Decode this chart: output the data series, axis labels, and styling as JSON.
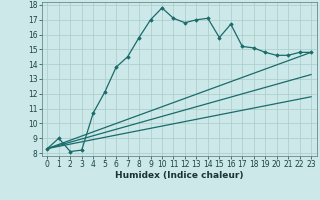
{
  "title": "",
  "xlabel": "Humidex (Indice chaleur)",
  "ylabel": "",
  "bg_color": "#cce8e8",
  "line_color": "#1a6b6b",
  "grid_color": "#aacccc",
  "xlim": [
    -0.5,
    23.5
  ],
  "ylim": [
    7.8,
    18.2
  ],
  "xticks": [
    0,
    1,
    2,
    3,
    4,
    5,
    6,
    7,
    8,
    9,
    10,
    11,
    12,
    13,
    14,
    15,
    16,
    17,
    18,
    19,
    20,
    21,
    22,
    23
  ],
  "yticks": [
    8,
    9,
    10,
    11,
    12,
    13,
    14,
    15,
    16,
    17,
    18
  ],
  "series1_x": [
    0,
    1,
    2,
    3,
    4,
    5,
    6,
    7,
    8,
    9,
    10,
    11,
    12,
    13,
    14,
    15,
    16,
    17,
    18,
    19,
    20,
    21,
    22,
    23
  ],
  "series1_y": [
    8.3,
    9.0,
    8.1,
    8.2,
    10.7,
    12.1,
    13.8,
    14.5,
    15.8,
    17.0,
    17.8,
    17.1,
    16.8,
    17.0,
    17.1,
    15.8,
    16.7,
    15.2,
    15.1,
    14.8,
    14.6,
    14.6,
    14.8,
    14.8
  ],
  "series2_x": [
    0,
    23
  ],
  "series2_y": [
    8.3,
    14.8
  ],
  "series3_x": [
    0,
    23
  ],
  "series3_y": [
    8.3,
    13.3
  ],
  "series4_x": [
    0,
    23
  ],
  "series4_y": [
    8.3,
    11.8
  ],
  "marker": "D",
  "marker_size": 1.8,
  "line_width": 0.9,
  "tick_fontsize": 5.5,
  "xlabel_fontsize": 6.5
}
